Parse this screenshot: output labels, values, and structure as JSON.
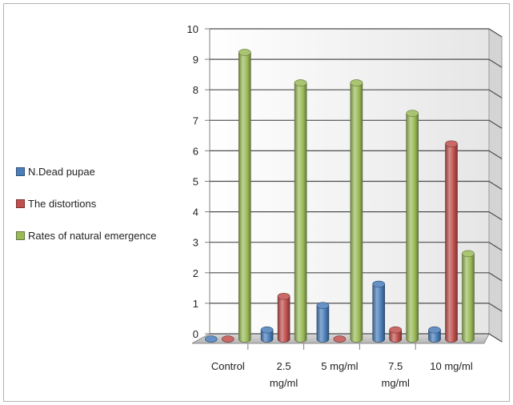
{
  "chart_data": {
    "type": "bar",
    "style": "3d-clustered-cylinder",
    "categories": [
      "Control",
      "2.5 mg/ml",
      "5 mg/ml",
      "7.5 mg/ml",
      "10 mg/ml"
    ],
    "category_lines": [
      [
        "Control"
      ],
      [
        "2.5",
        "mg/ml"
      ],
      [
        "5 mg/ml"
      ],
      [
        "7.5",
        "mg/ml"
      ],
      [
        "10 mg/ml"
      ]
    ],
    "series": [
      {
        "name": "N.Dead pupae",
        "color": "#4a7ebb",
        "values": [
          0,
          0.3,
          1.1,
          1.8,
          0.3
        ]
      },
      {
        "name": "The distortions",
        "color": "#c0504d",
        "values": [
          0,
          1.4,
          0,
          0.3,
          6.4
        ]
      },
      {
        "name": "Rates of natural emergence",
        "color": "#9bbb59",
        "values": [
          9.4,
          8.4,
          8.4,
          7.4,
          2.8
        ]
      }
    ],
    "yticks": [
      "0",
      "1",
      "2",
      "3",
      "4",
      "5",
      "6",
      "7",
      "8",
      "9",
      "10"
    ],
    "ylim": [
      0,
      10
    ],
    "grid": true,
    "legend_position": "left",
    "title": "",
    "xlabel": "",
    "ylabel": ""
  }
}
